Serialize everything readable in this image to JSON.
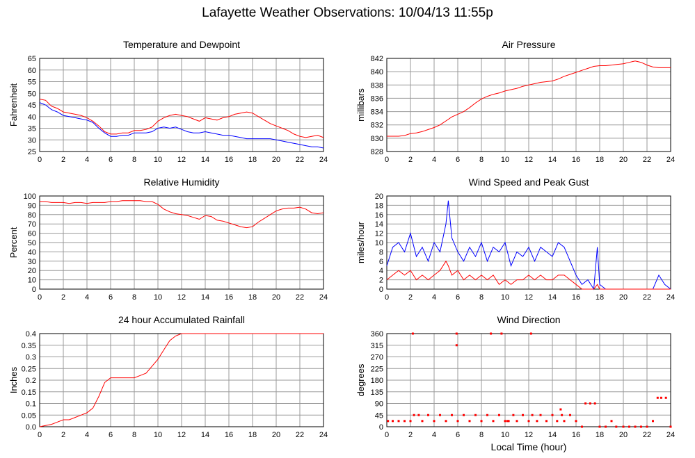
{
  "page_title": "Lafayette Weather Observations: 10/04/13 11:55p",
  "x_axis_label": "Local Time (hour)",
  "x_ticks": [
    "0",
    "2",
    "4",
    "6",
    "8",
    "10",
    "12",
    "14",
    "16",
    "18",
    "20",
    "22",
    "24"
  ],
  "colors": {
    "primary_series": "#ff0000",
    "secondary_series": "#0000ff",
    "grid": "#999999",
    "frame": "#000000"
  },
  "chart_data": [
    {
      "id": "temp",
      "type": "line",
      "title": "Temperature and Dewpoint",
      "xlabel": "",
      "ylabel": "Fahrenheit",
      "xlim": [
        0,
        24
      ],
      "ylim": [
        25,
        65
      ],
      "yticks": [
        "25",
        "30",
        "35",
        "40",
        "45",
        "50",
        "55",
        "60",
        "65"
      ],
      "x": [
        0,
        0.5,
        1,
        1.5,
        2,
        2.5,
        3,
        3.5,
        4,
        4.5,
        5,
        5.5,
        6,
        6.5,
        7,
        7.5,
        8,
        8.5,
        9,
        9.5,
        10,
        10.5,
        11,
        11.5,
        12,
        12.5,
        13,
        13.5,
        14,
        14.5,
        15,
        15.5,
        16,
        16.5,
        17,
        17.5,
        18,
        18.5,
        19,
        19.5,
        20,
        20.5,
        21,
        21.5,
        22,
        22.5,
        23,
        23.5,
        24
      ],
      "series": [
        {
          "color": "#ff0000",
          "values": [
            47.5,
            47,
            44.5,
            43.5,
            42,
            41.5,
            41,
            40.5,
            39.5,
            38,
            36,
            33.5,
            32.5,
            32.5,
            33,
            33,
            34,
            34,
            34.5,
            35.5,
            38,
            39.5,
            40.5,
            41,
            40.5,
            40,
            39,
            38,
            39.5,
            39,
            38.5,
            39.5,
            40,
            41,
            41.5,
            42,
            41.5,
            40,
            38.5,
            37,
            36,
            35,
            34,
            32.5,
            31.5,
            31,
            31.5,
            32,
            31
          ]
        },
        {
          "color": "#0000ff",
          "values": [
            46,
            45,
            43,
            42,
            40.5,
            40,
            39.5,
            39,
            38.5,
            37.5,
            35,
            33,
            31.5,
            31.5,
            32,
            32,
            33,
            33,
            33,
            33.5,
            35,
            35.5,
            35,
            35.5,
            34.5,
            33.5,
            33,
            33,
            33.5,
            33,
            32.5,
            32,
            32,
            31.5,
            31,
            30.5,
            30.5,
            30.5,
            30.5,
            30.5,
            30,
            29.5,
            29,
            28.5,
            28,
            27.5,
            27,
            27,
            26.5
          ]
        }
      ]
    },
    {
      "id": "pressure",
      "type": "line",
      "title": "Air Pressure",
      "xlabel": "",
      "ylabel": "millibars",
      "xlim": [
        0,
        24
      ],
      "ylim": [
        828,
        842
      ],
      "yticks": [
        "828",
        "830",
        "832",
        "834",
        "836",
        "838",
        "840",
        "842"
      ],
      "x": [
        0,
        0.5,
        1,
        1.5,
        2,
        2.5,
        3,
        3.5,
        4,
        4.5,
        5,
        5.5,
        6,
        6.5,
        7,
        7.5,
        8,
        8.5,
        9,
        9.5,
        10,
        10.5,
        11,
        11.5,
        12,
        12.5,
        13,
        13.5,
        14,
        14.5,
        15,
        15.5,
        16,
        16.5,
        17,
        17.5,
        18,
        18.5,
        19,
        19.5,
        20,
        20.5,
        21,
        21.5,
        22,
        22.5,
        23,
        23.5,
        24
      ],
      "series": [
        {
          "color": "#ff0000",
          "values": [
            830.3,
            830.3,
            830.3,
            830.4,
            830.7,
            830.8,
            831,
            831.3,
            831.6,
            832,
            832.6,
            833.2,
            833.6,
            834,
            834.6,
            835.3,
            835.9,
            836.3,
            836.6,
            836.8,
            837.1,
            837.3,
            837.5,
            837.8,
            838,
            838.2,
            838.4,
            838.5,
            838.6,
            838.9,
            839.3,
            839.6,
            839.9,
            840.2,
            840.5,
            840.8,
            840.9,
            840.9,
            841,
            841.1,
            841.2,
            841.4,
            841.6,
            841.4,
            841,
            840.7,
            840.6,
            840.6,
            840.6
          ]
        }
      ]
    },
    {
      "id": "humidity",
      "type": "line",
      "title": "Relative Humidity",
      "xlabel": "",
      "ylabel": "Percent",
      "xlim": [
        0,
        24
      ],
      "ylim": [
        0,
        100
      ],
      "yticks": [
        "0",
        "10",
        "20",
        "30",
        "40",
        "50",
        "60",
        "70",
        "80",
        "90",
        "100"
      ],
      "x": [
        0,
        0.5,
        1,
        1.5,
        2,
        2.5,
        3,
        3.5,
        4,
        4.5,
        5,
        5.5,
        6,
        6.5,
        7,
        7.5,
        8,
        8.5,
        9,
        9.5,
        10,
        10.5,
        11,
        11.5,
        12,
        12.5,
        13,
        13.5,
        14,
        14.5,
        15,
        15.5,
        16,
        16.5,
        17,
        17.5,
        18,
        18.5,
        19,
        19.5,
        20,
        20.5,
        21,
        21.5,
        22,
        22.5,
        23,
        23.5,
        24
      ],
      "series": [
        {
          "color": "#ff0000",
          "values": [
            94,
            94,
            93,
            93,
            93,
            92,
            93,
            93,
            92,
            93,
            93,
            93,
            94,
            94,
            95,
            95,
            95,
            95,
            94,
            94,
            91,
            86,
            83,
            81,
            80,
            79,
            77,
            75,
            79,
            78,
            74,
            73,
            71,
            69,
            67,
            66,
            67,
            72,
            76,
            80,
            84,
            86,
            87,
            87,
            88,
            86,
            82,
            81,
            82
          ]
        }
      ]
    },
    {
      "id": "wind",
      "type": "line",
      "title": "Wind Speed and Peak Gust",
      "xlabel": "",
      "ylabel": "miles/hour",
      "xlim": [
        0,
        24
      ],
      "ylim": [
        0,
        20
      ],
      "yticks": [
        "0",
        "2",
        "4",
        "6",
        "8",
        "10",
        "12",
        "14",
        "16",
        "18",
        "20"
      ],
      "x": [
        0,
        0.5,
        1,
        1.5,
        2,
        2.5,
        3,
        3.5,
        4,
        4.5,
        5,
        5.2,
        5.5,
        6,
        6.5,
        7,
        7.5,
        8,
        8.5,
        9,
        9.5,
        10,
        10.5,
        11,
        11.5,
        12,
        12.5,
        13,
        13.5,
        14,
        14.5,
        15,
        15.5,
        16,
        16.5,
        17,
        17.5,
        17.8,
        18,
        18.5,
        19,
        19.5,
        20,
        20.5,
        21,
        21.5,
        22,
        22.5,
        23,
        23.5,
        24
      ],
      "series": [
        {
          "color": "#0000ff",
          "values": [
            5,
            9,
            10,
            8,
            12,
            7,
            9,
            6,
            10,
            8,
            14,
            19,
            11,
            8,
            6,
            9,
            7,
            10,
            6,
            9,
            8,
            10,
            5,
            8,
            7,
            9,
            6,
            9,
            8,
            7,
            10,
            9,
            6,
            3,
            1,
            2,
            0,
            9,
            1,
            0,
            0,
            0,
            0,
            0,
            0,
            0,
            0,
            0,
            3,
            1,
            0
          ]
        },
        {
          "color": "#ff0000",
          "values": [
            2,
            3,
            4,
            3,
            4,
            2,
            3,
            2,
            3,
            4,
            6,
            5,
            3,
            4,
            2,
            3,
            2,
            3,
            2,
            3,
            1,
            2,
            1,
            2,
            2,
            3,
            2,
            3,
            2,
            2,
            3,
            3,
            2,
            1,
            0,
            0,
            0,
            1,
            0,
            0,
            0,
            0,
            0,
            0,
            0,
            0,
            0,
            0,
            0,
            0,
            0
          ]
        }
      ]
    },
    {
      "id": "rain",
      "type": "line",
      "title": "24 hour Accumulated Rainfall",
      "xlabel": "",
      "ylabel": "Inches",
      "xlim": [
        0,
        24
      ],
      "ylim": [
        0,
        0.4
      ],
      "yticks": [
        "0.0",
        "0.05",
        "0.1",
        "0.15",
        "0.2",
        "0.25",
        "0.3",
        "0.35",
        "0.4"
      ],
      "x": [
        0,
        0.5,
        1,
        1.5,
        2,
        2.5,
        3,
        3.5,
        4,
        4.5,
        5,
        5.5,
        6,
        6.5,
        7,
        7.5,
        8,
        8.5,
        9,
        9.5,
        10,
        10.5,
        11,
        11.5,
        12,
        12.5,
        13,
        14,
        16,
        18,
        20,
        22,
        24
      ],
      "series": [
        {
          "color": "#ff0000",
          "values": [
            0,
            0.005,
            0.01,
            0.02,
            0.03,
            0.03,
            0.04,
            0.05,
            0.06,
            0.08,
            0.13,
            0.19,
            0.21,
            0.21,
            0.21,
            0.21,
            0.21,
            0.22,
            0.23,
            0.26,
            0.29,
            0.33,
            0.37,
            0.39,
            0.4,
            0.4,
            0.4,
            0.4,
            0.4,
            0.4,
            0.4,
            0.4,
            0.4
          ]
        }
      ]
    },
    {
      "id": "direction",
      "type": "scatter",
      "title": "Wind Direction",
      "xlabel": "",
      "ylabel": "degrees",
      "xlim": [
        0,
        24
      ],
      "ylim": [
        0,
        360
      ],
      "yticks": [
        "0",
        "45",
        "90",
        "135",
        "180",
        "225",
        "270",
        "315",
        "360"
      ],
      "x": [
        0.1,
        0.5,
        1,
        1.5,
        2,
        2.3,
        2.7,
        3,
        3.5,
        4,
        4.5,
        5,
        5.5,
        6,
        6.5,
        7,
        7.5,
        8,
        8.5,
        9,
        9.5,
        10,
        10.3,
        10.7,
        11,
        11.5,
        12,
        12.3,
        12.7,
        13,
        13.5,
        14,
        14.4,
        14.8,
        15,
        15.5,
        16,
        16.5,
        16.8,
        17.2,
        17.6,
        18,
        18.5,
        19,
        19.4,
        20,
        20.5,
        21,
        21.5,
        22,
        22.5,
        22.9,
        23.2,
        23.6,
        24,
        2.2,
        5.9,
        8.8,
        9.7,
        12.2,
        5.9,
        10.2,
        14.7
      ],
      "series": [
        {
          "color": "#ff0000",
          "values": [
            22,
            22,
            22,
            22,
            22,
            45,
            45,
            22,
            45,
            22,
            45,
            22,
            45,
            22,
            45,
            22,
            45,
            22,
            45,
            22,
            45,
            22,
            22,
            45,
            22,
            45,
            22,
            45,
            22,
            45,
            22,
            45,
            22,
            45,
            22,
            45,
            22,
            0,
            90,
            90,
            90,
            0,
            0,
            22,
            0,
            0,
            0,
            0,
            0,
            0,
            22,
            112,
            112,
            112,
            0,
            360,
            315,
            360,
            360,
            360,
            360,
            22,
            67
          ]
        }
      ]
    }
  ]
}
